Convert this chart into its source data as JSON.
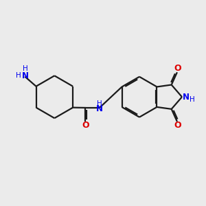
{
  "bg_color": "#ebebeb",
  "bond_color": "#1a1a1a",
  "N_color": "#0000ee",
  "O_color": "#dd0000",
  "lw": 1.6,
  "xlim": [
    0,
    10
  ],
  "ylim": [
    0,
    10
  ]
}
